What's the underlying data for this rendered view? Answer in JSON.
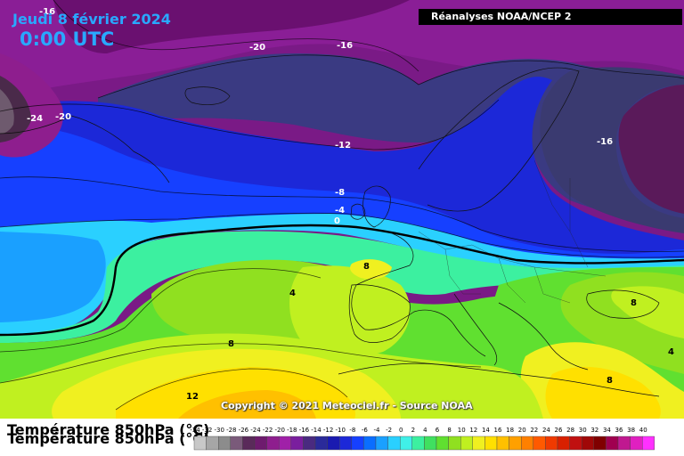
{
  "header": {
    "date": "Jeudi 8 février 2024",
    "time": "0:00 UTC",
    "source": "Réanalyses NOAA/NCEP 2"
  },
  "footer": {
    "copyright": "Copyright © 2021 Meteociel.fr - Source NOAA",
    "legend_title": "Température 850hPa (°C)"
  },
  "legend": {
    "values": [
      -34,
      -32,
      -30,
      -28,
      -26,
      -24,
      -22,
      -20,
      -18,
      -16,
      -14,
      -12,
      -10,
      -8,
      -6,
      -4,
      -2,
      0,
      2,
      4,
      6,
      8,
      10,
      12,
      14,
      16,
      18,
      20,
      22,
      24,
      26,
      28,
      30,
      32,
      34,
      36,
      38,
      40
    ],
    "colors": [
      "#c8c8c8",
      "#a6a6a6",
      "#8c8c8c",
      "#7a5a7a",
      "#5a2a5a",
      "#6e1b6e",
      "#8e1e8e",
      "#a020a8",
      "#7a1e9e",
      "#4a2a80",
      "#2a2a9a",
      "#1a1ab0",
      "#1c28d8",
      "#1640ff",
      "#0a6eff",
      "#1aa0ff",
      "#2ad0ff",
      "#40f0e8",
      "#3cf0a0",
      "#40e060",
      "#60e030",
      "#90e020",
      "#c0f020",
      "#f0f020",
      "#ffe000",
      "#ffc000",
      "#ffa000",
      "#ff8000",
      "#ff5a00",
      "#f03a00",
      "#d82000",
      "#c01010",
      "#a00808",
      "#800000",
      "#a00050",
      "#c01890",
      "#e020c0",
      "#ff30ff"
    ]
  },
  "contours": {
    "minus24": "-24",
    "minus20a": "-20",
    "minus20b": "-20",
    "minus16a": "-16",
    "minus16b": "-16",
    "minus16c": "-16",
    "minus12": "-12",
    "minus8": "-8",
    "minus4": "-4",
    "zero": "0",
    "plus4": "4",
    "plus8a": "8",
    "plus8b": "8",
    "plus8c": "8",
    "plus8d": "8",
    "plus4b": "4",
    "plus12": "12"
  }
}
